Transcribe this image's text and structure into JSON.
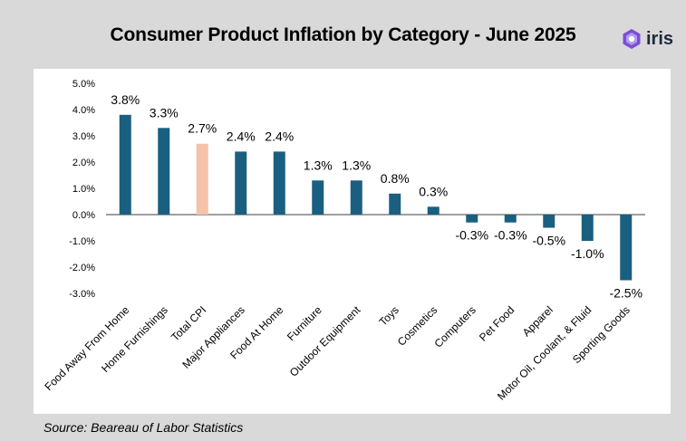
{
  "header": {
    "title": "Consumer Product Inflation by Category - June 2025",
    "logo_text": "iris"
  },
  "footer": {
    "source": "Source: Beareau of Labor Statistics"
  },
  "colors": {
    "bar": "#1a5f80",
    "highlight": "#f4c3a8",
    "background": "#d9d9d9",
    "panel": "#ffffff",
    "logo_accent": "#7b4fd6"
  },
  "chart_data": {
    "type": "bar",
    "title": "Consumer Product Inflation by Category - June 2025",
    "xlabel": "",
    "ylabel": "",
    "ylim": [
      -3.0,
      5.0
    ],
    "yticks": [
      "5.0%",
      "4.0%",
      "3.0%",
      "2.0%",
      "1.0%",
      "0.0%",
      "-1.0%",
      "-2.0%",
      "-3.0%"
    ],
    "ytick_values": [
      5,
      4,
      3,
      2,
      1,
      0,
      -1,
      -2,
      -3
    ],
    "grid": false,
    "categories": [
      "Food Away From Home",
      "Home Furnishings",
      "Total CPI",
      "Major Appliances",
      "Food At Home",
      "Furniture",
      "Outdoor Equipment",
      "Toys",
      "Cosmetics",
      "Computers",
      "Pet Food",
      "Apparel",
      "Motor Oil, Coolant, & Fluid",
      "Sporting Goods"
    ],
    "values": [
      3.8,
      3.3,
      2.7,
      2.4,
      2.4,
      1.3,
      1.3,
      0.8,
      0.3,
      -0.3,
      -0.3,
      -0.5,
      -1.0,
      -2.5
    ],
    "data_labels": [
      "3.8%",
      "3.3%",
      "2.7%",
      "2.4%",
      "2.4%",
      "1.3%",
      "1.3%",
      "0.8%",
      "0.3%",
      "-0.3%",
      "-0.3%",
      "-0.5%",
      "-1.0%",
      "-2.5%"
    ],
    "highlight_category": "Total CPI"
  }
}
